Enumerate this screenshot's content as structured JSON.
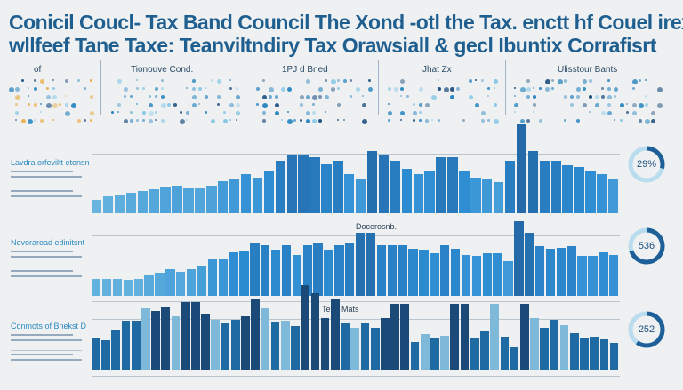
{
  "title": {
    "line1": "Conicil Coucl- Tax Band Council The Xond -otl  the Tax. enctt hf Couel irex",
    "line2": "wllfeef Tane Taxe: Teanviltndiry Tax Orawsiall & gecl Ibuntix  Corrafisrt"
  },
  "table_headers": [
    "of",
    "Tionouve Cond.",
    "1PJ d Bned",
    "Jhat Zx",
    "Ulisstour Bants"
  ],
  "colors": {
    "title": "#1f5f8f",
    "dark": "#1d4e7e",
    "mid": "#2a86bf",
    "light": "#86c8e6",
    "accent": "#e9a93a"
  },
  "chart_data": [
    {
      "type": "bar",
      "label": "Lavdra orfeviltt etonsn",
      "values": [
        22,
        28,
        30,
        35,
        38,
        40,
        44,
        46,
        42,
        42,
        46,
        54,
        56,
        66,
        60,
        72,
        88,
        98,
        98,
        94,
        82,
        88,
        66,
        58,
        104,
        98,
        88,
        74,
        66,
        70,
        94,
        94,
        72,
        60,
        58,
        52,
        88,
        150,
        104,
        88,
        88,
        80,
        78,
        70,
        66,
        56
      ],
      "donut_value": "29%",
      "donut_fraction": 0.29
    },
    {
      "type": "bar",
      "label": "Novoraroad edinitsnt",
      "section_title": "Docerosnb.",
      "values": [
        28,
        28,
        28,
        26,
        28,
        36,
        38,
        44,
        40,
        44,
        50,
        60,
        62,
        72,
        74,
        88,
        84,
        76,
        84,
        68,
        84,
        88,
        76,
        84,
        88,
        104,
        104,
        84,
        84,
        84,
        78,
        76,
        70,
        84,
        78,
        68,
        66,
        70,
        70,
        58,
        124,
        104,
        82,
        78,
        80,
        82,
        66,
        66,
        72,
        68
      ],
      "donut_value": "536",
      "donut_fraction": 0.7
    },
    {
      "type": "bar",
      "label": "Conmots of Bnekst D",
      "section_title": "Tean Mats",
      "values": [
        62,
        58,
        78,
        96,
        96,
        120,
        116,
        122,
        106,
        132,
        132,
        110,
        98,
        92,
        98,
        106,
        138,
        120,
        94,
        96,
        86,
        166,
        150,
        102,
        138,
        92,
        82,
        92,
        82,
        102,
        130,
        130,
        56,
        70,
        62,
        68,
        130,
        130,
        62,
        76,
        130,
        66,
        44,
        130,
        102,
        82,
        98,
        88,
        72,
        62,
        66,
        60,
        54
      ],
      "donut_value": "252",
      "donut_fraction": 0.6
    }
  ]
}
